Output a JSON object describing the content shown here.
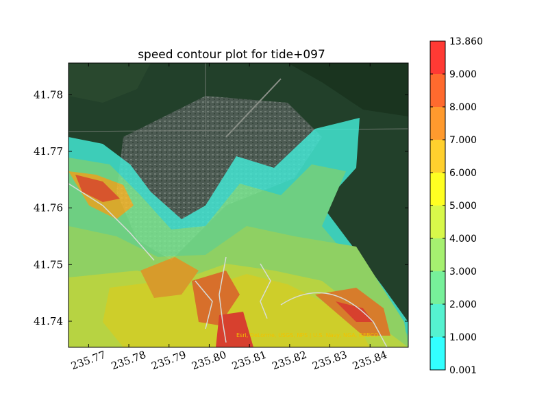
{
  "chart_data": {
    "type": "heatmap",
    "title": "speed contour plot for tide+097",
    "xlabel": "",
    "ylabel": "",
    "xlim": [
      235.765,
      235.8495
    ],
    "ylim": [
      41.7354,
      41.7856
    ],
    "x_ticks": [
      {
        "value": 235.77,
        "label": "235.77"
      },
      {
        "value": 235.78,
        "label": "235.78"
      },
      {
        "value": 235.79,
        "label": "235.79"
      },
      {
        "value": 235.8,
        "label": "235.80"
      },
      {
        "value": 235.81,
        "label": "235.81"
      },
      {
        "value": 235.82,
        "label": "235.82"
      },
      {
        "value": 235.83,
        "label": "235.83"
      },
      {
        "value": 235.84,
        "label": "235.84"
      }
    ],
    "y_ticks": [
      {
        "value": 41.74,
        "label": "41.74"
      },
      {
        "value": 41.75,
        "label": "41.75"
      },
      {
        "value": 41.76,
        "label": "41.76"
      },
      {
        "value": 41.77,
        "label": "41.77"
      },
      {
        "value": 41.78,
        "label": "41.78"
      }
    ],
    "colorbar": {
      "levels": [
        "0.001",
        "1.000",
        "2.000",
        "3.000",
        "4.000",
        "5.000",
        "6.000",
        "7.000",
        "8.000",
        "9.000",
        "13.860"
      ],
      "colors": [
        "#33ffff",
        "#55f2d0",
        "#77f09a",
        "#a6f070",
        "#d8f84a",
        "#ffff22",
        "#ffd02e",
        "#ff9a2e",
        "#ff6a2e",
        "#ff3a34"
      ]
    },
    "basemap_attribution": "Esri, DeLorme, USGS, NPS | U.S. Navy, NGA, GEBCO",
    "colors": {
      "forest": "#1f3a22",
      "town": "#58625a",
      "frame": "#000000"
    }
  }
}
